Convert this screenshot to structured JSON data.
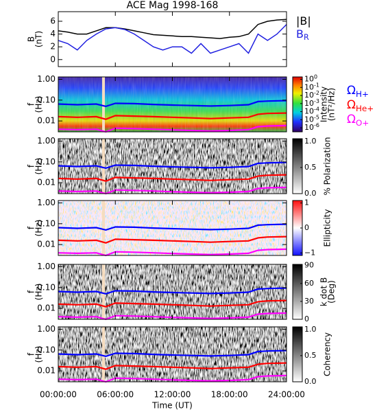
{
  "chart_data": [
    {
      "type": "line",
      "title": "ACE Mag 1998-168",
      "ylabel_lines": [
        "B",
        "(nT)"
      ],
      "x": [
        0,
        1,
        2,
        3,
        4,
        5,
        6,
        7,
        8,
        9,
        10,
        11,
        12,
        13,
        14,
        15,
        16,
        17,
        18,
        19,
        20,
        21,
        22,
        23,
        24
      ],
      "xlim": [
        0,
        24
      ],
      "ylim": [
        -1.1,
        7.5
      ],
      "yticks": [
        0,
        2,
        4,
        6
      ],
      "series": [
        {
          "name": "|B|",
          "color": "#000000",
          "values": [
            4.5,
            4.3,
            4.0,
            4.0,
            4.5,
            5.0,
            5.0,
            4.8,
            4.5,
            4.2,
            3.9,
            3.8,
            3.7,
            3.6,
            3.6,
            3.5,
            3.4,
            3.3,
            3.5,
            3.6,
            4.0,
            5.5,
            6.0,
            6.2,
            6.3
          ]
        },
        {
          "name": "B",
          "subscript": "R",
          "color": "#1f1fe0",
          "values": [
            3.0,
            2.5,
            1.5,
            3.0,
            4.0,
            4.8,
            5.0,
            4.7,
            4.0,
            3.0,
            2.0,
            1.5,
            2.0,
            2.0,
            1.0,
            2.5,
            1.0,
            1.5,
            2.0,
            2.5,
            1.0,
            4.0,
            3.0,
            4.0,
            5.5
          ]
        }
      ]
    },
    {
      "type": "spectrogram",
      "ylabel_lines": [
        "f",
        "(Hz)"
      ],
      "log_y": true,
      "xlim": [
        0,
        24
      ],
      "ylim": [
        0.003,
        1.3
      ],
      "yticks": [
        {
          "value": 1,
          "label": "1.00"
        },
        {
          "value": 0.1,
          "label": "0.10"
        },
        {
          "value": 0.01,
          "label": "0.01"
        }
      ],
      "colormap": "rainbow",
      "colorbar_label_lines": [
        "Intensity",
        "(nT²/Hz)"
      ],
      "clim": [
        -6.5,
        0.3
      ],
      "cticks": [
        {
          "value": 0,
          "label": "10",
          "exponent": "0"
        },
        {
          "value": -1,
          "label": "10",
          "exponent": "-1"
        },
        {
          "value": -2,
          "label": "10",
          "exponent": "-2"
        },
        {
          "value": -3,
          "label": "10",
          "exponent": "-3"
        },
        {
          "value": -4,
          "label": "10",
          "exponent": "-4"
        },
        {
          "value": -5,
          "label": "10",
          "exponent": "-5"
        },
        {
          "value": -6,
          "label": "10",
          "exponent": "-6"
        }
      ],
      "x": [
        0,
        2,
        4,
        5,
        6,
        8,
        10,
        12,
        14,
        16,
        18,
        20,
        21,
        22,
        24
      ],
      "series": [
        {
          "name": "Ω",
          "subscript": "H+",
          "color": "#0000ff",
          "values": [
            0.065,
            0.06,
            0.065,
            0.05,
            0.07,
            0.068,
            0.062,
            0.058,
            0.055,
            0.052,
            0.055,
            0.06,
            0.085,
            0.09,
            0.095
          ]
        },
        {
          "name": "Ω",
          "subscript": "He+",
          "color": "#ff0000",
          "values": [
            0.016,
            0.015,
            0.016,
            0.012,
            0.018,
            0.017,
            0.016,
            0.015,
            0.014,
            0.013,
            0.014,
            0.015,
            0.021,
            0.023,
            0.024
          ]
        },
        {
          "name": "Ω",
          "subscript": "O+",
          "color": "#ff00ff",
          "values": [
            0.004,
            0.0038,
            0.004,
            0.003,
            0.0045,
            0.0043,
            0.004,
            0.0037,
            0.0035,
            0.0033,
            0.0035,
            0.0038,
            0.0053,
            0.0057,
            0.006
          ]
        }
      ]
    },
    {
      "type": "spectrogram",
      "ylabel_lines": [
        "f",
        "(Hz)"
      ],
      "log_y": true,
      "xlim": [
        0,
        24
      ],
      "ylim": [
        0.003,
        1.3
      ],
      "yticks": [
        {
          "value": 1,
          "label": "1.00"
        },
        {
          "value": 0.1,
          "label": "0.10"
        },
        {
          "value": 0.01,
          "label": "0.01"
        }
      ],
      "colormap": "gray",
      "colorbar_label_lines": [
        "% Polarization"
      ],
      "clim": [
        0,
        1.05
      ],
      "cticks": [
        {
          "value": 0,
          "label": "0.0"
        },
        {
          "value": 0.5,
          "label": "0.5"
        },
        {
          "value": 1,
          "label": "1.0"
        }
      ],
      "x": [
        0,
        2,
        4,
        5,
        6,
        8,
        10,
        12,
        14,
        16,
        18,
        20,
        21,
        22,
        24
      ],
      "series": [
        {
          "color": "#0000ff",
          "values": [
            0.065,
            0.06,
            0.065,
            0.05,
            0.07,
            0.068,
            0.062,
            0.058,
            0.055,
            0.052,
            0.055,
            0.06,
            0.085,
            0.09,
            0.095
          ]
        },
        {
          "color": "#ff0000",
          "values": [
            0.016,
            0.015,
            0.016,
            0.012,
            0.018,
            0.017,
            0.016,
            0.015,
            0.014,
            0.013,
            0.014,
            0.015,
            0.021,
            0.023,
            0.024
          ]
        },
        {
          "color": "#ff00ff",
          "values": [
            0.004,
            0.0038,
            0.004,
            0.003,
            0.0045,
            0.0043,
            0.004,
            0.0037,
            0.0035,
            0.0033,
            0.0035,
            0.0038,
            0.0053,
            0.0057,
            0.006
          ]
        }
      ]
    },
    {
      "type": "spectrogram",
      "ylabel_lines": [
        "f",
        "(Hz)"
      ],
      "log_y": true,
      "xlim": [
        0,
        24
      ],
      "ylim": [
        0.003,
        1.3
      ],
      "yticks": [
        {
          "value": 1,
          "label": "1.00"
        },
        {
          "value": 0.1,
          "label": "0.10"
        },
        {
          "value": 0.01,
          "label": "0.01"
        }
      ],
      "colormap": "bwr",
      "colorbar_label_lines": [
        "Ellipticity"
      ],
      "clim": [
        -1.1,
        1.1
      ],
      "cticks": [
        {
          "value": -1,
          "label": "−1"
        },
        0,
        1
      ],
      "x": [
        0,
        2,
        4,
        5,
        6,
        8,
        10,
        12,
        14,
        16,
        18,
        20,
        21,
        22,
        24
      ],
      "series": [
        {
          "color": "#0000ff",
          "values": [
            0.065,
            0.06,
            0.065,
            0.05,
            0.07,
            0.068,
            0.062,
            0.058,
            0.055,
            0.052,
            0.055,
            0.06,
            0.085,
            0.09,
            0.095
          ]
        },
        {
          "color": "#ff0000",
          "values": [
            0.016,
            0.015,
            0.016,
            0.012,
            0.018,
            0.017,
            0.016,
            0.015,
            0.014,
            0.013,
            0.014,
            0.015,
            0.021,
            0.023,
            0.024
          ]
        },
        {
          "color": "#ff00ff",
          "values": [
            0.004,
            0.0038,
            0.004,
            0.003,
            0.0045,
            0.0043,
            0.004,
            0.0037,
            0.0035,
            0.0033,
            0.0035,
            0.0038,
            0.0053,
            0.0057,
            0.006
          ]
        }
      ]
    },
    {
      "type": "spectrogram",
      "ylabel_lines": [
        "f",
        "(Hz)"
      ],
      "log_y": true,
      "xlim": [
        0,
        24
      ],
      "ylim": [
        0.003,
        1.3
      ],
      "yticks": [
        {
          "value": 1,
          "label": "1.00"
        },
        {
          "value": 0.1,
          "label": "0.10"
        },
        {
          "value": 0.01,
          "label": "0.01"
        }
      ],
      "colormap": "gray",
      "colorbar_label_lines": [
        "k dot B",
        "(Deg)"
      ],
      "clim": [
        0,
        92
      ],
      "cticks": [
        0,
        30,
        60,
        90
      ],
      "x": [
        0,
        2,
        4,
        5,
        6,
        8,
        10,
        12,
        14,
        16,
        18,
        20,
        21,
        22,
        24
      ],
      "series": [
        {
          "color": "#0000ff",
          "values": [
            0.065,
            0.06,
            0.065,
            0.05,
            0.07,
            0.068,
            0.062,
            0.058,
            0.055,
            0.052,
            0.055,
            0.06,
            0.085,
            0.09,
            0.095
          ]
        },
        {
          "color": "#ff0000",
          "values": [
            0.016,
            0.015,
            0.016,
            0.012,
            0.018,
            0.017,
            0.016,
            0.015,
            0.014,
            0.013,
            0.014,
            0.015,
            0.021,
            0.023,
            0.024
          ]
        },
        {
          "color": "#ff00ff",
          "values": [
            0.004,
            0.0038,
            0.004,
            0.003,
            0.0045,
            0.0043,
            0.004,
            0.0037,
            0.0035,
            0.0033,
            0.0035,
            0.0038,
            0.0053,
            0.0057,
            0.006
          ]
        }
      ]
    },
    {
      "type": "spectrogram",
      "ylabel_lines": [
        "f",
        "(Hz)"
      ],
      "log_y": true,
      "xlim": [
        0,
        24
      ],
      "ylim": [
        0.003,
        1.3
      ],
      "yticks": [
        {
          "value": 1,
          "label": "1.00"
        },
        {
          "value": 0.1,
          "label": "0.10"
        },
        {
          "value": 0.01,
          "label": "0.01"
        }
      ],
      "colormap": "gray",
      "colorbar_label_lines": [
        "Coherency"
      ],
      "clim": [
        0,
        1.05
      ],
      "cticks": [
        {
          "value": 0,
          "label": "0.0"
        },
        {
          "value": 0.5,
          "label": "0.5"
        },
        {
          "value": 1,
          "label": "1.0"
        }
      ],
      "x": [
        0,
        2,
        4,
        5,
        6,
        8,
        10,
        12,
        14,
        16,
        18,
        20,
        21,
        22,
        24
      ],
      "series": [
        {
          "color": "#0000ff",
          "values": [
            0.065,
            0.06,
            0.065,
            0.05,
            0.07,
            0.068,
            0.062,
            0.058,
            0.055,
            0.052,
            0.055,
            0.06,
            0.085,
            0.09,
            0.095
          ]
        },
        {
          "color": "#ff0000",
          "values": [
            0.016,
            0.015,
            0.016,
            0.012,
            0.018,
            0.017,
            0.016,
            0.015,
            0.014,
            0.013,
            0.014,
            0.015,
            0.021,
            0.023,
            0.024
          ]
        },
        {
          "color": "#ff00ff",
          "values": [
            0.004,
            0.0038,
            0.004,
            0.003,
            0.0045,
            0.0043,
            0.004,
            0.0037,
            0.0035,
            0.0033,
            0.0035,
            0.0038,
            0.0053,
            0.0057,
            0.006
          ]
        }
      ],
      "xlabel": "Time (UT)",
      "xticks": [
        {
          "value": 0,
          "label": "00:00:00"
        },
        {
          "value": 6,
          "label": "06:00:00"
        },
        {
          "value": 12,
          "label": "12:00:00"
        },
        {
          "value": 18,
          "label": "18:00:00"
        },
        {
          "value": 24,
          "label": "24:00:00"
        }
      ]
    }
  ]
}
